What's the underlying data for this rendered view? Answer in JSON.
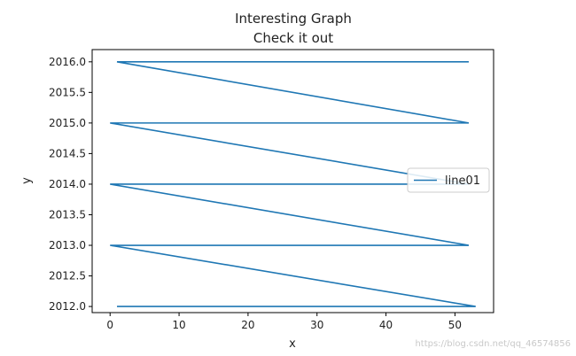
{
  "chart_data": {
    "type": "line",
    "title": "Interesting Graph\nCheck it out",
    "title_lines": [
      "Interesting Graph",
      "Check it out"
    ],
    "xlabel": "x",
    "ylabel": "y",
    "xlim": [
      -2.6,
      55.6
    ],
    "ylim": [
      2011.9,
      2016.2
    ],
    "xticks": [
      0,
      10,
      20,
      30,
      40,
      50
    ],
    "yticks": [
      2012.0,
      2012.5,
      2013.0,
      2013.5,
      2014.0,
      2014.5,
      2015.0,
      2015.5,
      2016.0
    ],
    "ytick_labels": [
      "2012.0",
      "2012.5",
      "2013.0",
      "2013.5",
      "2014.0",
      "2014.5",
      "2015.0",
      "2015.5",
      "2016.0"
    ],
    "grid": false,
    "legend": {
      "position": "center-right",
      "entries": [
        "line01"
      ]
    },
    "series": [
      {
        "name": "line01",
        "color": "#1f77b4",
        "x": [
          52,
          1,
          52,
          0,
          52,
          0,
          52,
          0,
          53,
          1
        ],
        "y": [
          2016.0,
          2016.0,
          2015.0,
          2015.0,
          2014.0,
          2014.0,
          2013.0,
          2013.0,
          2012.0,
          2012.0
        ]
      }
    ]
  },
  "watermark": "https://blog.csdn.net/qq_46574856"
}
